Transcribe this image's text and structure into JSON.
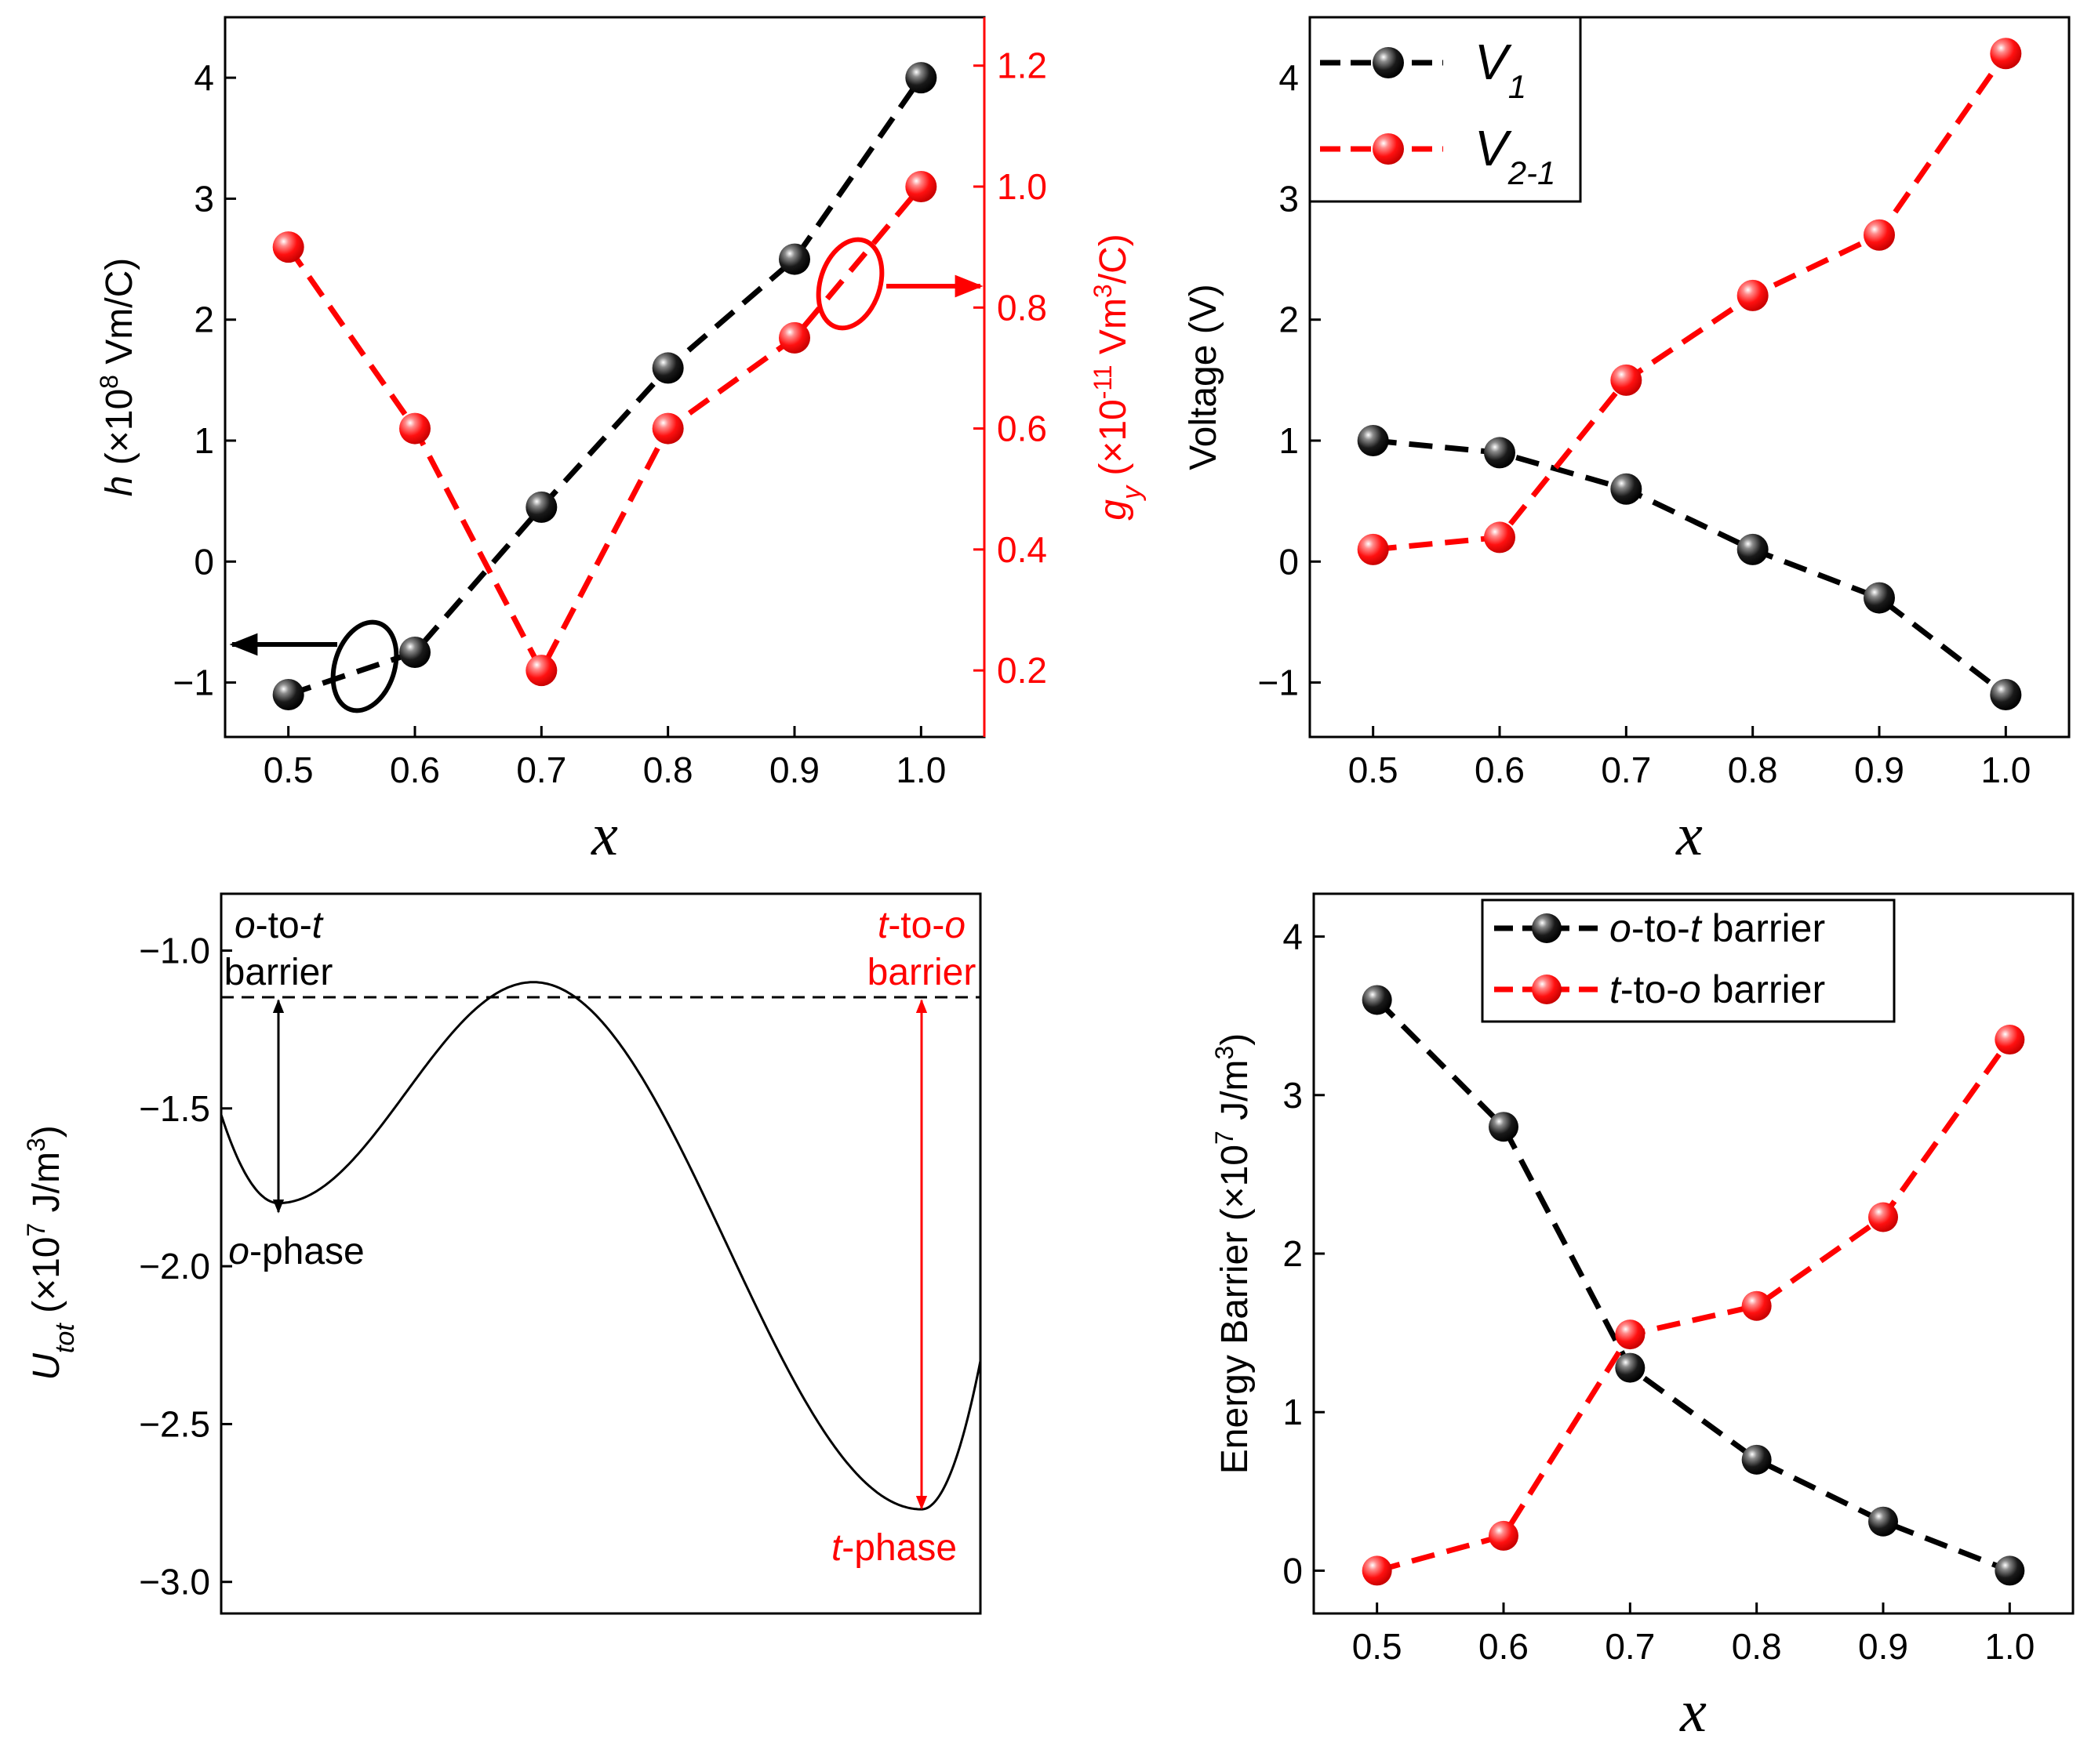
{
  "colors": {
    "black": "#000000",
    "red": "#ff0000"
  },
  "chart_data": [
    {
      "id": "a",
      "type": "line",
      "x": [
        0.5,
        0.6,
        0.7,
        0.8,
        0.9,
        1.0
      ],
      "xlabel": "x",
      "xlim": [
        0.45,
        1.05
      ],
      "xticks": [
        "0.5",
        "0.6",
        "0.7",
        "0.8",
        "0.9",
        "1.0"
      ],
      "ylabel_left": {
        "symbol": "h",
        "rest": "(×10",
        "exp": "8",
        "unit": " Vm/C)"
      },
      "ylim_left": [
        -1.45,
        4.5
      ],
      "yticks_left": [
        "−1",
        "0",
        "1",
        "2",
        "3",
        "4"
      ],
      "ylabel_right": {
        "symbol": "g",
        "sub": "y",
        "rest": "(×10",
        "exp1": "-11",
        "mid": " Vm",
        "exp2": "3",
        "end": "/C)"
      },
      "ylim_right": [
        0.09,
        1.28
      ],
      "yticks_right": [
        "0.2",
        "0.4",
        "0.6",
        "0.8",
        "1.0",
        "1.2"
      ],
      "series": [
        {
          "axis": "left",
          "color": "#000000",
          "values": [
            -1.1,
            -0.75,
            0.45,
            1.6,
            2.5,
            4.0
          ]
        },
        {
          "axis": "right",
          "color": "#ff0000",
          "values": [
            0.9,
            0.6,
            0.2,
            0.6,
            0.75,
            1.0
          ]
        }
      ]
    },
    {
      "id": "b",
      "type": "line",
      "x": [
        0.5,
        0.6,
        0.7,
        0.8,
        0.9,
        1.0
      ],
      "xlabel": "x",
      "xlim": [
        0.45,
        1.05
      ],
      "xticks": [
        "0.5",
        "0.6",
        "0.7",
        "0.8",
        "0.9",
        "1.0"
      ],
      "ylabel": "Voltage (V)",
      "ylim": [
        -1.45,
        4.5
      ],
      "yticks": [
        "−1",
        "0",
        "1",
        "2",
        "3",
        "4"
      ],
      "legend": [
        {
          "main": "V",
          "sub": "1"
        },
        {
          "main": "V",
          "sub": "2-1"
        }
      ],
      "series": [
        {
          "color": "#000000",
          "values": [
            1.0,
            0.9,
            0.6,
            0.1,
            -0.3,
            -1.1
          ]
        },
        {
          "color": "#ff0000",
          "values": [
            0.1,
            0.2,
            1.5,
            2.2,
            2.7,
            4.2
          ]
        }
      ]
    },
    {
      "id": "c",
      "type": "line",
      "ylabel": {
        "symbol": "U",
        "sub": "tot",
        "rest": "(×10",
        "exp": "7",
        "unit": " J/m",
        "exp2": "3",
        "end": ")"
      },
      "ylim": [
        -3.1,
        -0.82
      ],
      "yticks": [
        "−1.0",
        "−1.5",
        "−2.0",
        "−2.5",
        "−3.0"
      ],
      "curve": {
        "u_left": -1.52,
        "o_min": -1.8,
        "barrier_top": -1.1,
        "t_min": -2.77,
        "u_right": -2.3
      },
      "annotations": {
        "o_to_t": {
          "i1": "o",
          "t1": "-to-",
          "i2": "t",
          "line2": "barrier"
        },
        "t_to_o": {
          "i1": "t",
          "t1": "-to-",
          "i2": "o",
          "line2": "barrier"
        },
        "o_phase": {
          "i": "o",
          "rest": "-phase"
        },
        "t_phase": {
          "i": "t",
          "rest": "-phase"
        }
      }
    },
    {
      "id": "d",
      "type": "line",
      "x": [
        0.5,
        0.6,
        0.7,
        0.8,
        0.9,
        1.0
      ],
      "xlabel": "x",
      "xlim": [
        0.45,
        1.05
      ],
      "xticks": [
        "0.5",
        "0.6",
        "0.7",
        "0.8",
        "0.9",
        "1.0"
      ],
      "ylabel": {
        "text": "Energy Barrier (×10",
        "exp": "7",
        "unit": " J/m",
        "exp2": "3",
        "end": ")"
      },
      "ylim": [
        -0.27,
        4.27
      ],
      "yticks": [
        "0",
        "1",
        "2",
        "3",
        "4"
      ],
      "legend": [
        {
          "i": "o",
          "t1": "-to-",
          "i2": "t",
          "t2": " barrier"
        },
        {
          "i": "t",
          "t1": "-to-",
          "i2": "o",
          "t2": " barrier"
        }
      ],
      "series": [
        {
          "color": "#000000",
          "values": [
            3.6,
            2.8,
            1.28,
            0.7,
            0.31,
            0.0
          ]
        },
        {
          "color": "#ff0000",
          "values": [
            0.0,
            0.22,
            1.49,
            1.67,
            2.23,
            3.35
          ]
        }
      ]
    }
  ]
}
